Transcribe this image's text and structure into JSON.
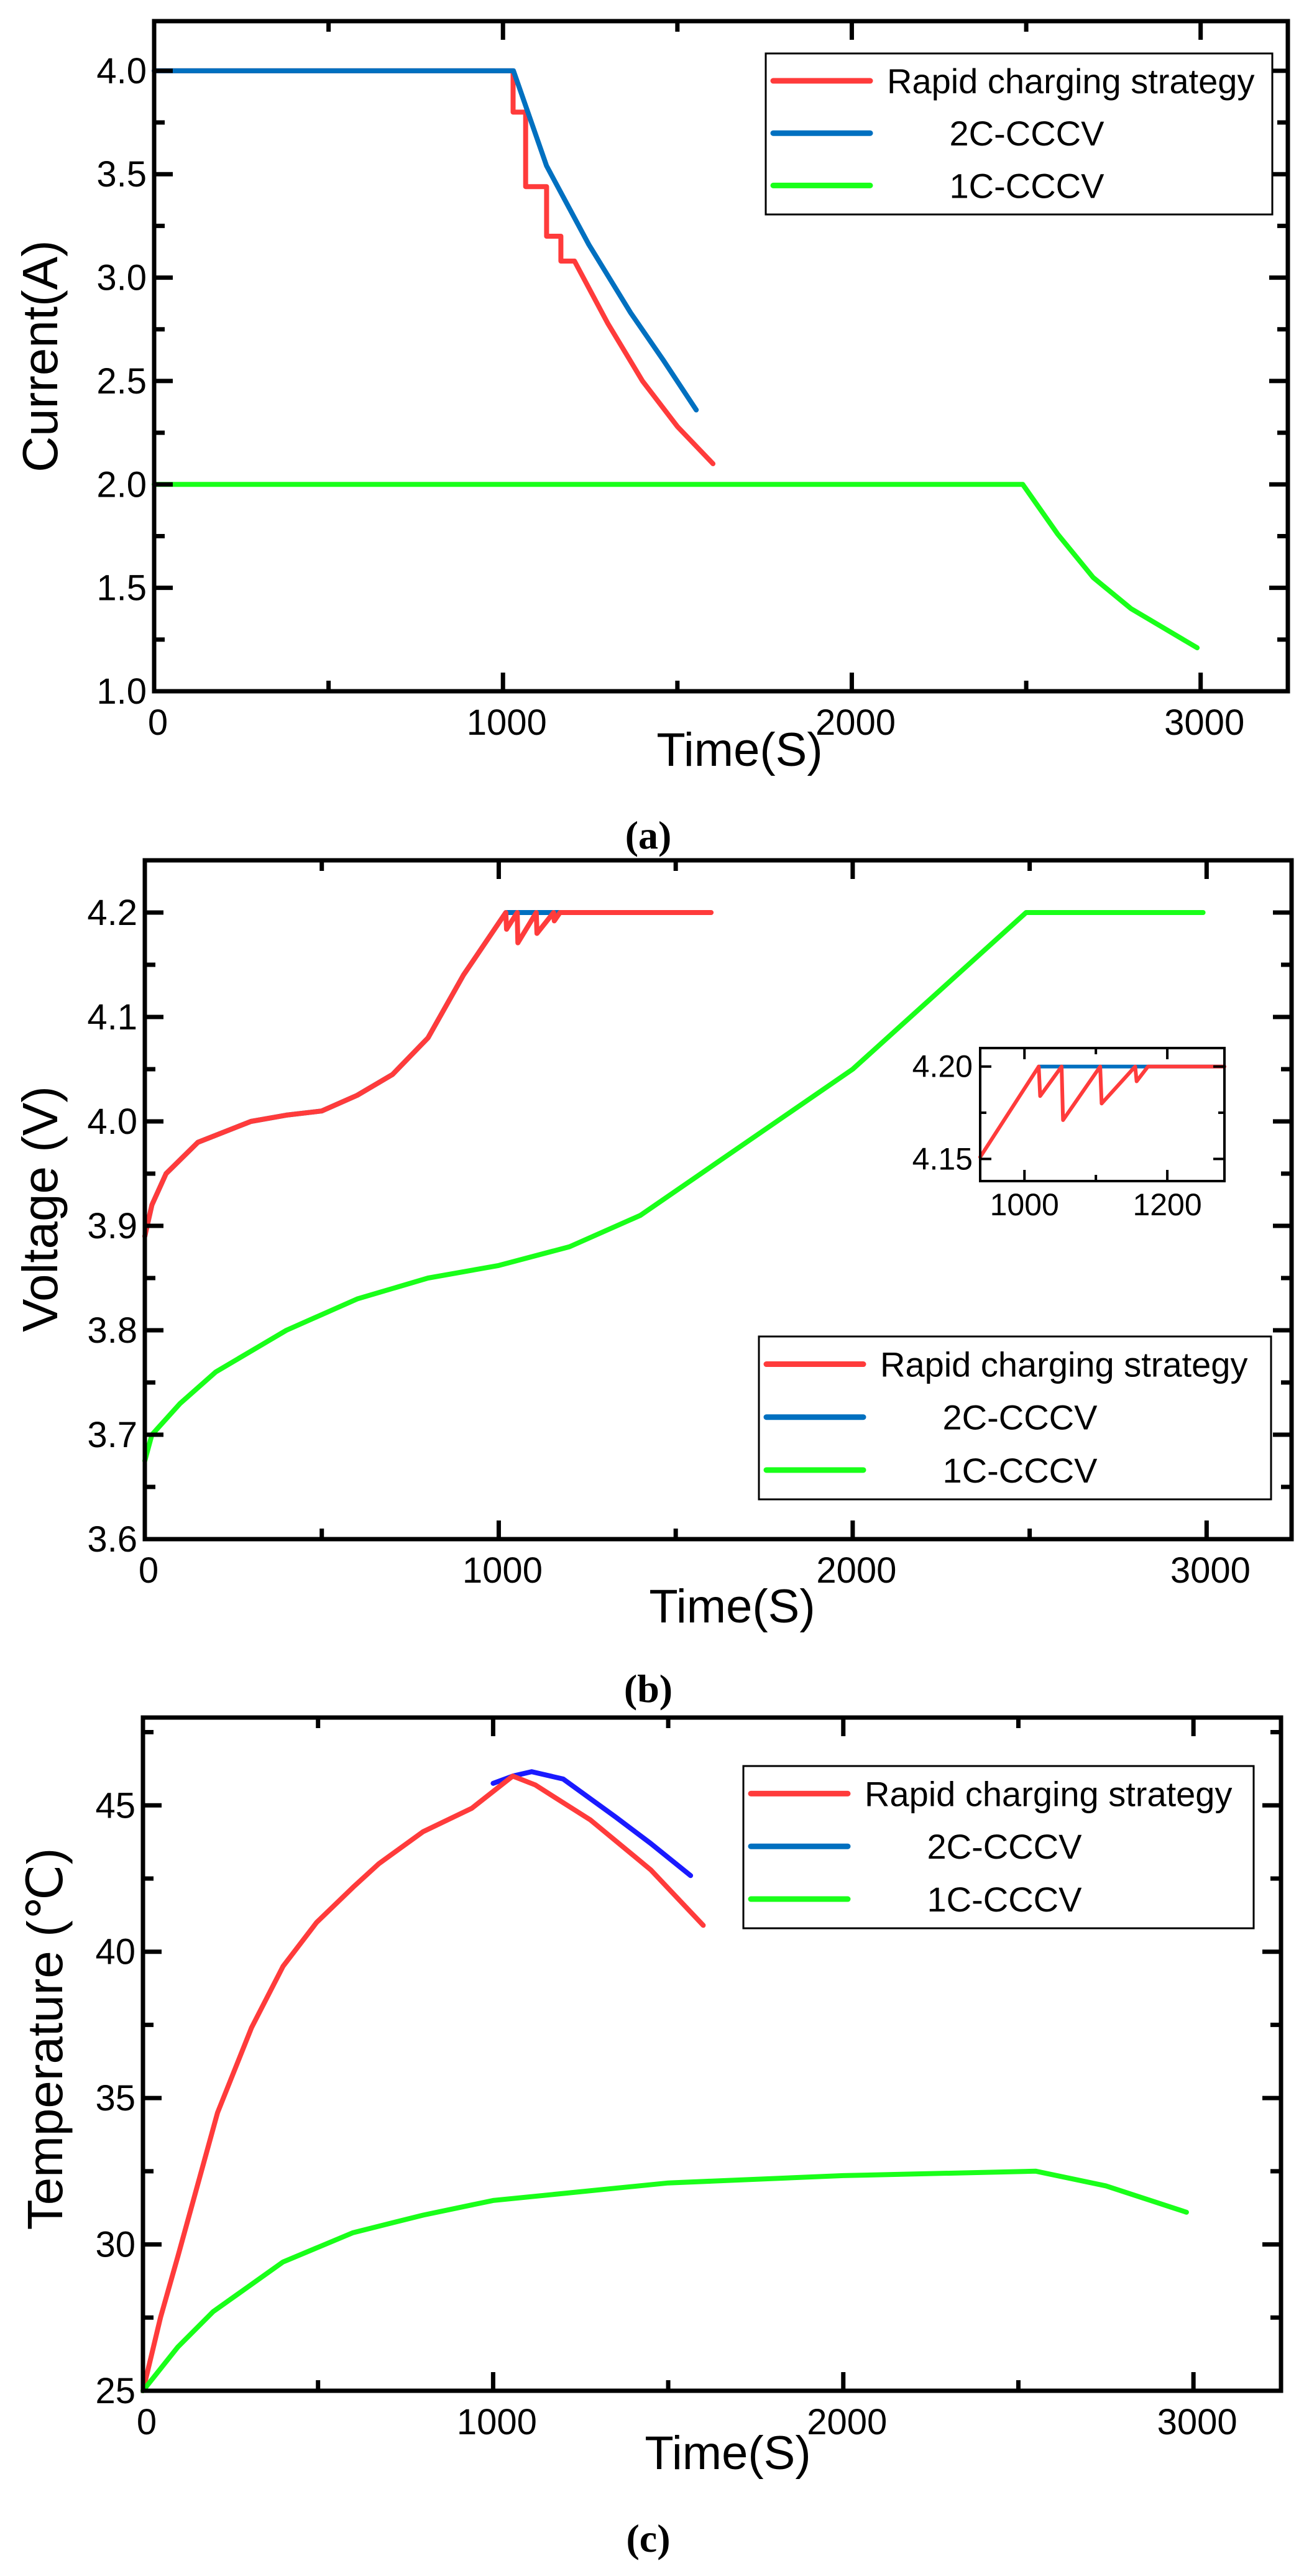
{
  "colors": {
    "rapid": "#ff3b3b",
    "cccv2": "#0070c0",
    "cccv2_temp": "#1a1aff",
    "cccv1": "#19ff19",
    "axis": "#000000"
  },
  "chart_data": [
    {
      "type": "line",
      "panel_label": "(a)",
      "xlabel": "Time(S)",
      "ylabel": "Current(A)",
      "xlim": [
        0,
        3250
      ],
      "ylim": [
        1.0,
        4.24
      ],
      "xticks": [
        "0",
        "1000",
        "2000",
        "3000"
      ],
      "yticks": [
        "1.0",
        "1.5",
        "2.0",
        "2.5",
        "3.0",
        "3.5",
        "4.0"
      ],
      "legend": {
        "placement": "top-right",
        "entries": [
          "Rapid charging strategy",
          "2C-CCCV",
          "1C-CCCV"
        ]
      },
      "series": [
        {
          "name": "Rapid charging strategy",
          "x": [
            0,
            1029,
            1029,
            1065,
            1065,
            1125,
            1125,
            1166,
            1166,
            1205,
            1300,
            1400,
            1500,
            1602
          ],
          "y": [
            4.0,
            4.0,
            3.8,
            3.8,
            3.44,
            3.44,
            3.2,
            3.2,
            3.08,
            3.08,
            2.78,
            2.5,
            2.28,
            2.1
          ]
        },
        {
          "name": "2C-CCCV",
          "x": [
            0,
            1030,
            1125,
            1246,
            1366,
            1460,
            1554
          ],
          "y": [
            4.0,
            4.0,
            3.54,
            3.16,
            2.83,
            2.6,
            2.36
          ]
        },
        {
          "name": "1C-CCCV",
          "x": [
            0,
            2490,
            2590,
            2692,
            2800,
            2900,
            2990
          ],
          "y": [
            2.0,
            2.0,
            1.76,
            1.55,
            1.4,
            1.3,
            1.21
          ]
        }
      ]
    },
    {
      "type": "line",
      "panel_label": "(b)",
      "xlabel": "Time(S)",
      "ylabel": "Voltage (V)",
      "xlim": [
        0,
        3240
      ],
      "ylim": [
        3.6,
        4.25
      ],
      "xticks": [
        "0",
        "1000",
        "2000",
        "3000"
      ],
      "yticks": [
        "3.6",
        "3.7",
        "3.8",
        "3.9",
        "4.0",
        "4.1",
        "4.2"
      ],
      "legend": {
        "placement": "bottom-right",
        "entries": [
          "Rapid charging strategy",
          "2C-CCCV",
          "1C-CCCV"
        ]
      },
      "series": [
        {
          "name": "2C-CCCV",
          "x": [
            0,
            20,
            60,
            150,
            300,
            400,
            500,
            600,
            700,
            800,
            900,
            1020,
            1550
          ],
          "y": [
            3.89,
            3.92,
            3.95,
            3.98,
            4.0,
            4.006,
            4.01,
            4.025,
            4.045,
            4.08,
            4.14,
            4.2,
            4.2
          ]
        },
        {
          "name": "Rapid charging strategy",
          "x": [
            0,
            20,
            60,
            150,
            300,
            400,
            500,
            600,
            700,
            800,
            900,
            1020,
            1022,
            1052,
            1054,
            1106,
            1108,
            1155,
            1157,
            1173,
            1600
          ],
          "y": [
            3.89,
            3.92,
            3.95,
            3.98,
            4.0,
            4.006,
            4.01,
            4.025,
            4.045,
            4.08,
            4.14,
            4.2,
            4.184,
            4.2,
            4.171,
            4.2,
            4.18,
            4.2,
            4.192,
            4.2,
            4.2
          ]
        },
        {
          "name": "1C-CCCV",
          "x": [
            0,
            20,
            100,
            200,
            400,
            600,
            800,
            1000,
            1200,
            1400,
            1550,
            2000,
            2490,
            2990
          ],
          "y": [
            3.675,
            3.7,
            3.73,
            3.76,
            3.8,
            3.83,
            3.85,
            3.862,
            3.88,
            3.91,
            3.945,
            4.05,
            4.2,
            4.2
          ]
        }
      ],
      "inset": {
        "xlim": [
          938,
          1280
        ],
        "ylim": [
          4.138,
          4.21
        ],
        "xticks": [
          "1000",
          "1200"
        ],
        "yticks": [
          "4.15",
          "4.20"
        ],
        "series": [
          {
            "name": "2C-CCCV",
            "x": [
              1020,
              1280
            ],
            "y": [
              4.2,
              4.2
            ]
          },
          {
            "name": "Rapid charging strategy",
            "x": [
              938,
              1020,
              1022,
              1052,
              1054,
              1106,
              1108,
              1155,
              1157,
              1173,
              1280
            ],
            "y": [
              4.151,
              4.2,
              4.184,
              4.2,
              4.171,
              4.2,
              4.18,
              4.2,
              4.192,
              4.2,
              4.2
            ]
          }
        ]
      }
    },
    {
      "type": "line",
      "panel_label": "(c)",
      "xlabel": "Time(S)",
      "ylabel": "Temperature (℃)",
      "xlim": [
        0,
        3250
      ],
      "ylim": [
        25,
        48
      ],
      "xticks": [
        "0",
        "1000",
        "2000",
        "3000"
      ],
      "yticks": [
        "25",
        "30",
        "35",
        "40",
        "45"
      ],
      "legend": {
        "placement": "top-right",
        "entries": [
          "Rapid charging strategy",
          "2C-CCCV",
          "1C-CCCV"
        ]
      },
      "series": [
        {
          "name": "2C-CCCV",
          "x": [
            1000,
            1056,
            1110,
            1200,
            1350,
            1450,
            1564
          ],
          "y": [
            45.75,
            46.0,
            46.15,
            45.9,
            44.6,
            43.7,
            42.6
          ]
        },
        {
          "name": "Rapid charging strategy",
          "x": [
            0,
            50,
            100,
            213,
            310,
            400,
            496,
            600,
            673,
            800,
            939,
            1056,
            1120,
            1278,
            1450,
            1600
          ],
          "y": [
            25,
            27.5,
            29.6,
            34.5,
            37.4,
            39.5,
            41.0,
            42.2,
            43.0,
            44.1,
            44.9,
            46.0,
            45.7,
            44.5,
            42.8,
            40.9
          ]
        },
        {
          "name": "1C-CCCV",
          "x": [
            0,
            100,
            200,
            400,
            600,
            800,
            1000,
            1500,
            2000,
            2550,
            2750,
            2980
          ],
          "y": [
            25,
            26.5,
            27.7,
            29.4,
            30.4,
            31.0,
            31.5,
            32.1,
            32.35,
            32.5,
            32.0,
            31.1
          ]
        }
      ]
    }
  ]
}
